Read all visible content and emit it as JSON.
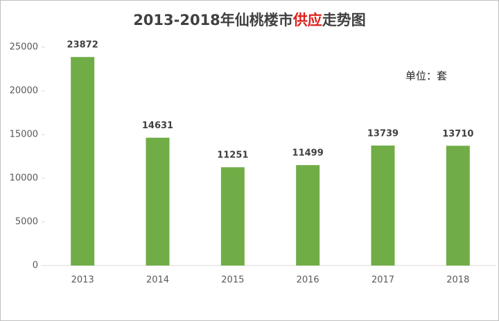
{
  "chart_data": {
    "type": "bar",
    "title_parts": [
      {
        "text": "2013-2018年仙桃楼市",
        "color": "#404040"
      },
      {
        "text": "供应",
        "color": "#e0201c"
      },
      {
        "text": "走势图",
        "color": "#404040"
      }
    ],
    "annotation": "单位：套",
    "categories": [
      "2013",
      "2014",
      "2015",
      "2016",
      "2017",
      "2018"
    ],
    "values": [
      23872,
      14631,
      11251,
      11499,
      13739,
      13710
    ],
    "color": "#70ad47",
    "ylim": [
      0,
      25000
    ],
    "yticks": [
      0,
      5000,
      10000,
      15000,
      20000,
      25000
    ],
    "grid": false
  }
}
